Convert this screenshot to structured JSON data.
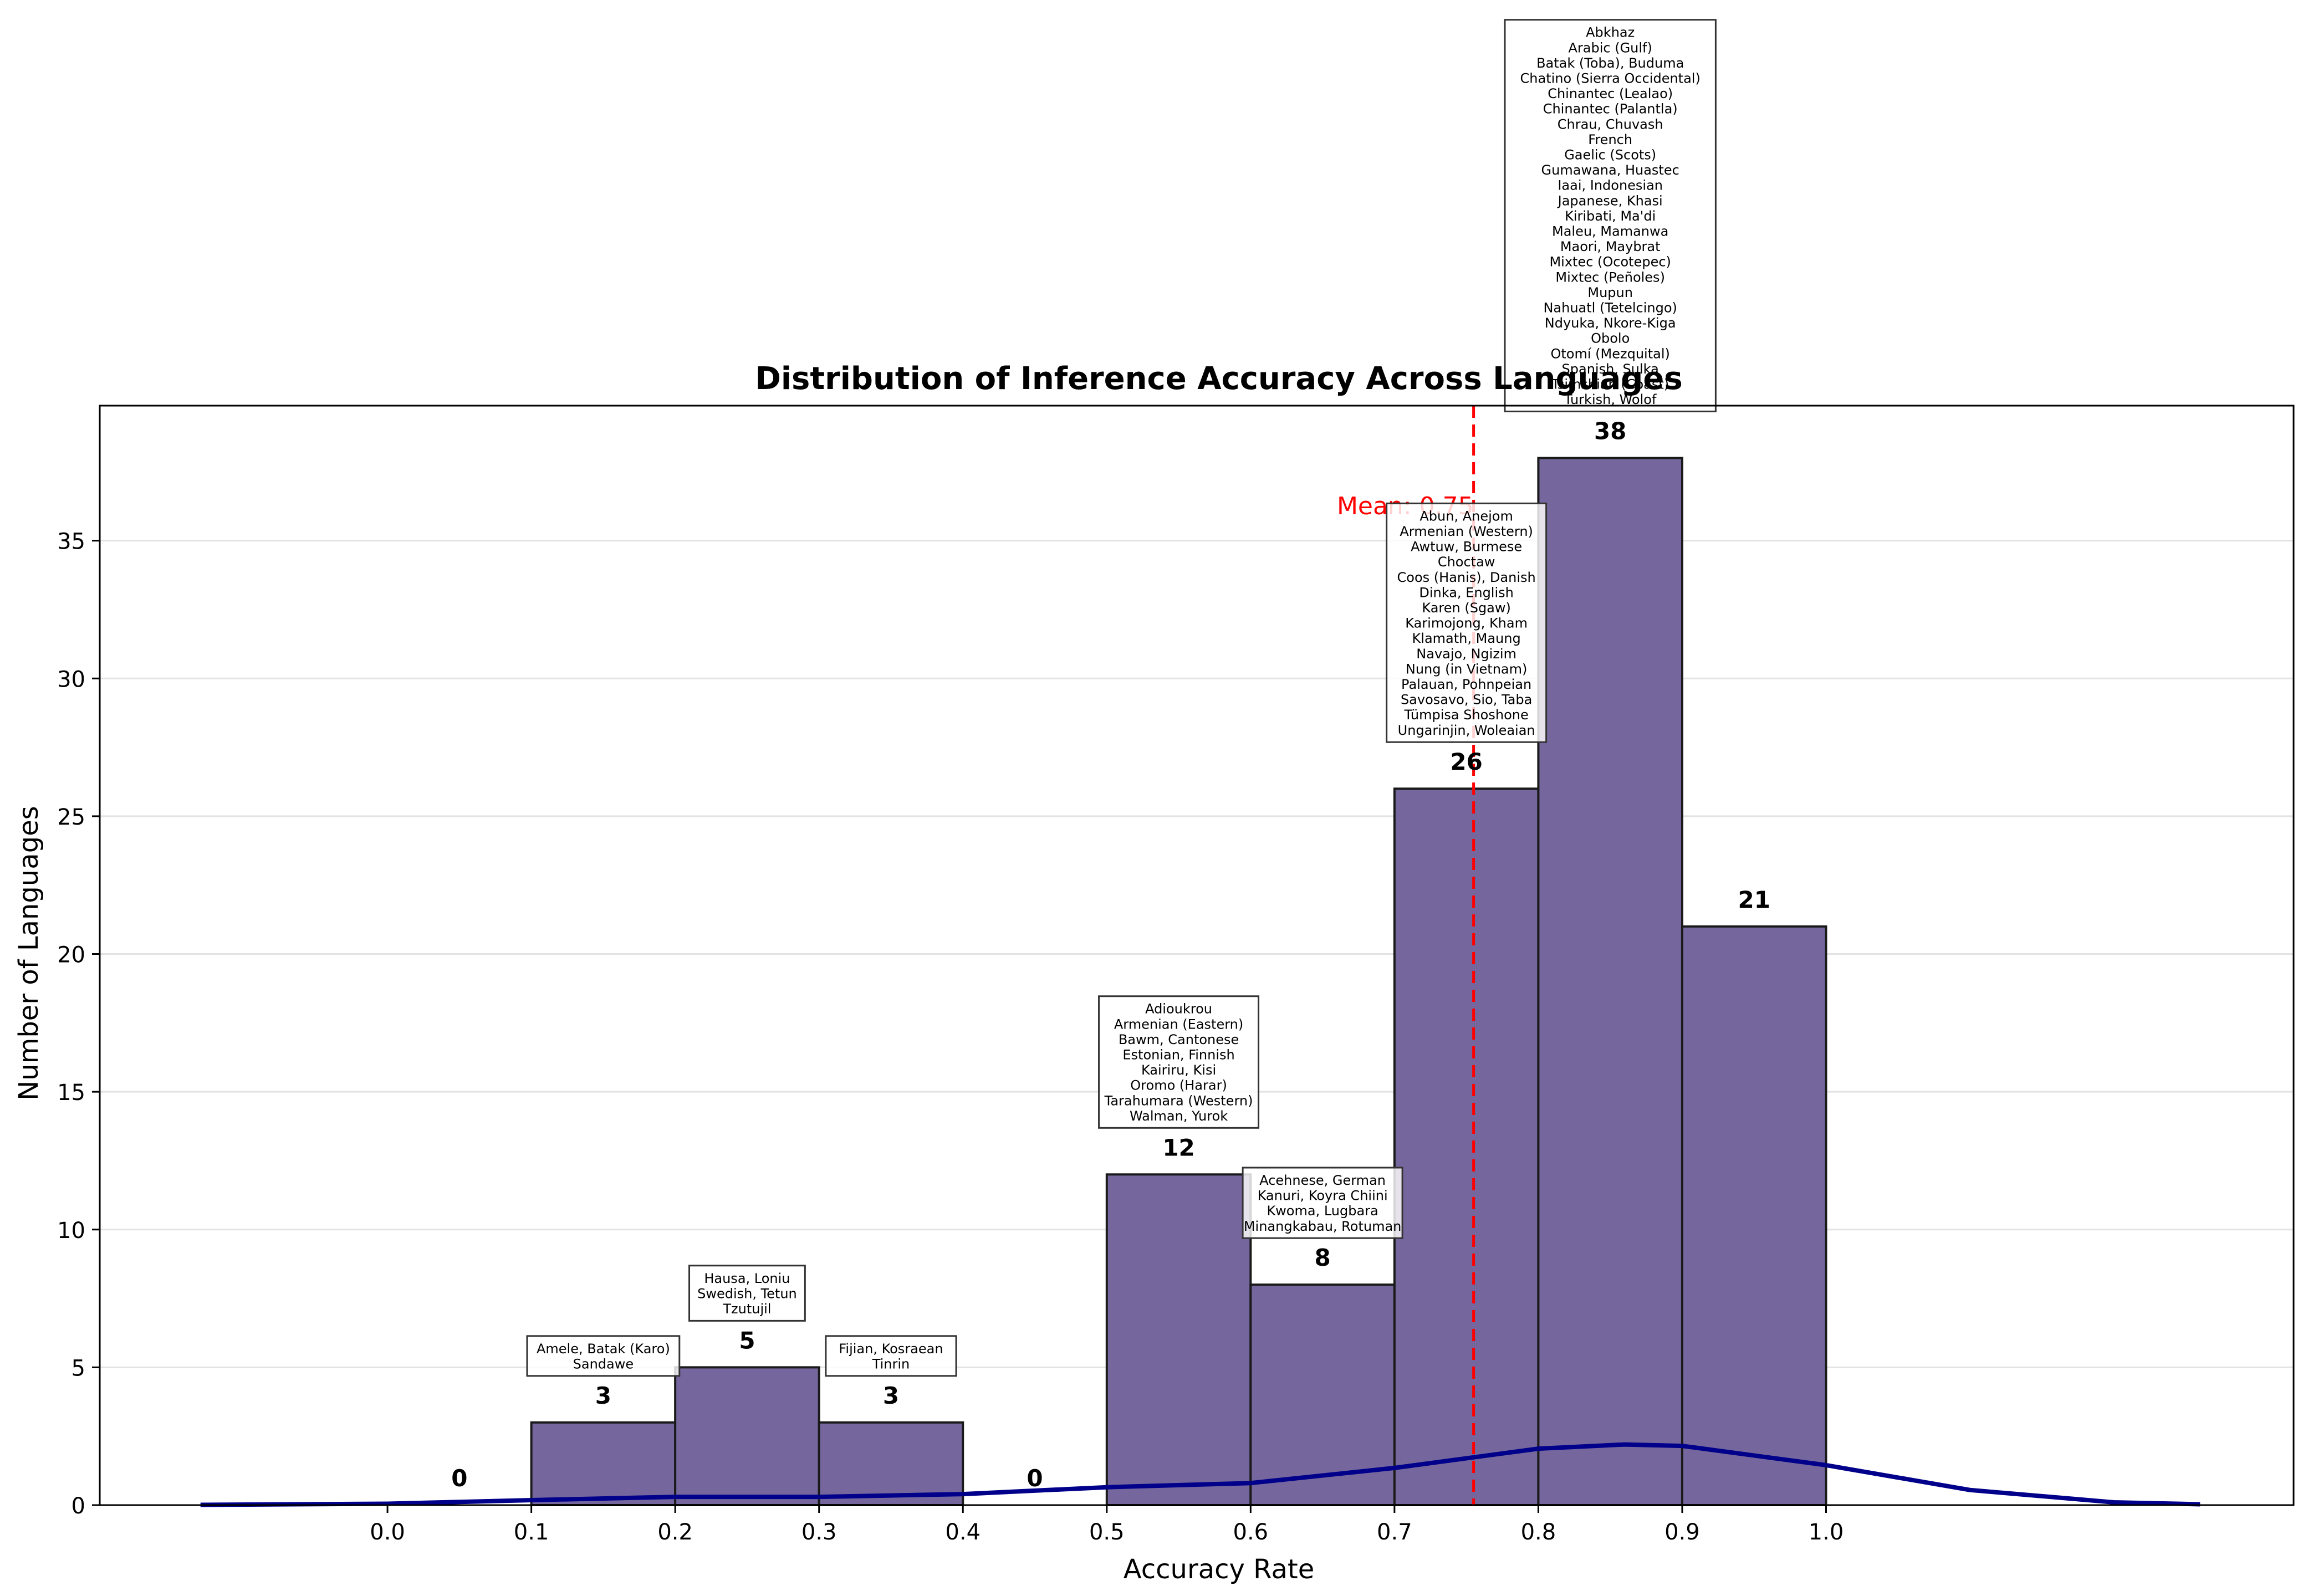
{
  "chart_data": {
    "type": "bar",
    "title": "Distribution of Inference Accuracy Across Languages",
    "xlabel": "Accuracy Rate",
    "ylabel": "Number of Languages",
    "xlim": [
      -0.2,
      1.325
    ],
    "ylim": [
      0,
      39.9
    ],
    "x_ticks": [
      "0.0",
      "0.1",
      "0.2",
      "0.3",
      "0.4",
      "0.5",
      "0.6",
      "0.7",
      "0.8",
      "0.9",
      "1.0"
    ],
    "y_ticks": [
      "0",
      "5",
      "10",
      "15",
      "20",
      "25",
      "30",
      "35"
    ],
    "grid": "horizontal",
    "bins": [
      {
        "start": 0.0,
        "end": 0.1,
        "count": 0,
        "label": "0",
        "languages": []
      },
      {
        "start": 0.1,
        "end": 0.2,
        "count": 3,
        "label": "3",
        "languages": [
          "Amele, Batak (Karo)",
          "Sandawe"
        ]
      },
      {
        "start": 0.2,
        "end": 0.3,
        "count": 5,
        "label": "5",
        "languages": [
          "Hausa, Loniu",
          "Swedish, Tetun",
          "Tzutujil"
        ]
      },
      {
        "start": 0.3,
        "end": 0.4,
        "count": 3,
        "label": "3",
        "languages": [
          "Fijian, Kosraean",
          "Tinrin"
        ]
      },
      {
        "start": 0.4,
        "end": 0.5,
        "count": 0,
        "label": "0",
        "languages": []
      },
      {
        "start": 0.5,
        "end": 0.6,
        "count": 12,
        "label": "12",
        "languages": [
          "Adioukrou",
          "Armenian (Eastern)",
          "Bawm, Cantonese",
          "Estonian, Finnish",
          "Kairiru, Kisi",
          "Oromo (Harar)",
          "Tarahumara (Western)",
          "Walman, Yurok"
        ]
      },
      {
        "start": 0.6,
        "end": 0.7,
        "count": 8,
        "label": "8",
        "languages": [
          "Acehnese, German",
          "Kanuri, Koyra Chiini",
          "Kwoma, Lugbara",
          "Minangkabau, Rotuman"
        ]
      },
      {
        "start": 0.7,
        "end": 0.8,
        "count": 26,
        "label": "26",
        "languages": [
          "Abun, Anejom",
          "Armenian (Western)",
          "Awtuw, Burmese",
          "Choctaw",
          "Coos (Hanis), Danish",
          "Dinka, English",
          "Karen (Sgaw)",
          "Karimojong, Kham",
          "Klamath, Maung",
          "Navajo, Ngizim",
          "Nung (in Vietnam)",
          "Palauan, Pohnpeian",
          "Savosavo, Sio, Taba",
          "Tümpisa Shoshone",
          "Ungarinjin, Woleaian"
        ]
      },
      {
        "start": 0.8,
        "end": 0.9,
        "count": 38,
        "label": "38",
        "languages": [
          "Abkhaz",
          "Arabic (Gulf)",
          "Batak (Toba), Buduma",
          "Chatino (Sierra Occidental)",
          "Chinantec (Lealao)",
          "Chinantec (Palantla)",
          "Chrau, Chuvash",
          "French",
          "Gaelic (Scots)",
          "Gumawana, Huastec",
          "Iaai, Indonesian",
          "Japanese, Khasi",
          "Kiribati, Ma'di",
          "Maleu, Mamanwa",
          "Maori, Maybrat",
          "Mixtec (Ocotepec)",
          "Mixtec (Peñoles)",
          "Mupun",
          "Nahuatl (Tetelcingo)",
          "Ndyuka, Nkore-Kiga",
          "Obolo",
          "Otomí (Mezquital)",
          "Spanish, Sulka",
          "Tsimshian (Coast)",
          "Turkish, Wolof"
        ]
      },
      {
        "start": 0.9,
        "end": 1.0,
        "count": 21,
        "label": "21",
        "languages": []
      }
    ],
    "mean": {
      "value": 0.755,
      "label": "Mean: 0.75"
    },
    "density_curve": {
      "x": [
        -0.13,
        0.0,
        0.1,
        0.2,
        0.3,
        0.4,
        0.5,
        0.6,
        0.7,
        0.8,
        0.86,
        0.9,
        1.0,
        1.1,
        1.2,
        1.26
      ],
      "y": [
        0.01,
        0.05,
        0.18,
        0.3,
        0.3,
        0.4,
        0.65,
        0.8,
        1.35,
        2.05,
        2.2,
        2.15,
        1.45,
        0.55,
        0.1,
        0.03
      ]
    },
    "colors": {
      "bar": "#75679d",
      "curve": "#00008b",
      "mean_line": "#ff0000"
    }
  }
}
